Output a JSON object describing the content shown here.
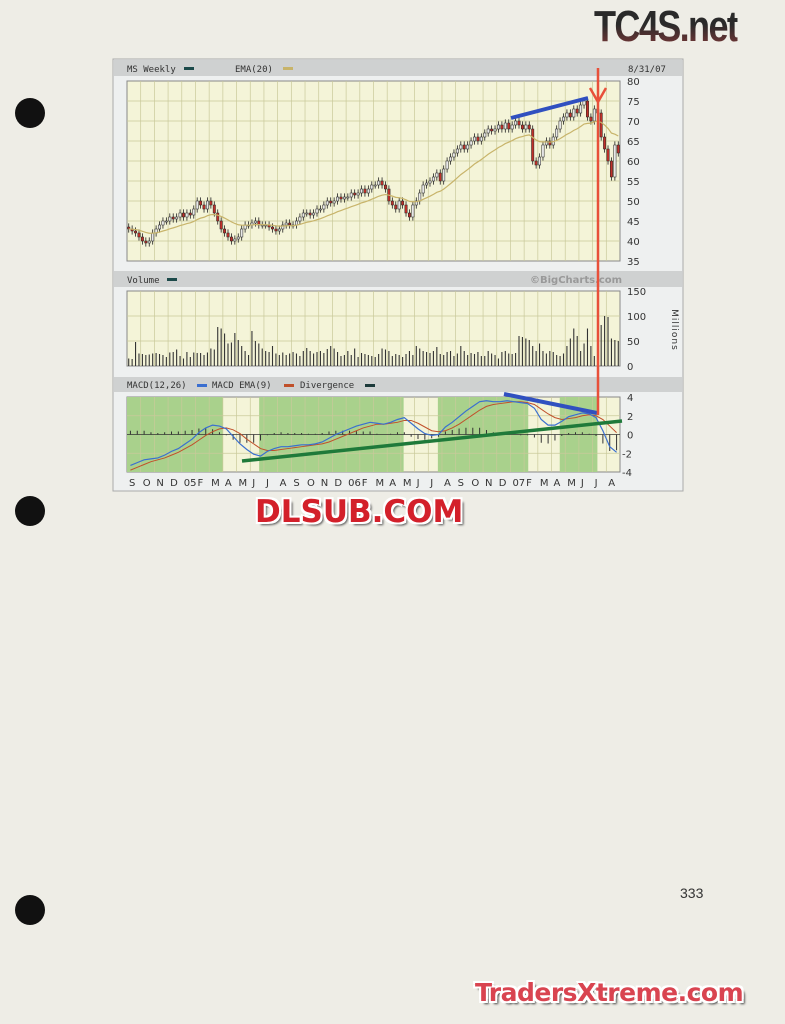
{
  "logos": {
    "top_right": "TC4S.net",
    "middle": "DLSUB.COM",
    "bottom_right": "TradersXtreme.com"
  },
  "page_number": "333",
  "chart_data": {
    "type": "candlestick",
    "price_panel": {
      "series_label": "MS Weekly",
      "ema_label": "EMA(20)",
      "date": "8/31/07",
      "ylim": [
        35,
        80
      ],
      "yticks": [
        "80",
        "75",
        "70",
        "65",
        "60",
        "55",
        "50",
        "45",
        "40",
        "35"
      ],
      "closes": [
        43,
        42.5,
        42,
        41,
        40,
        39.5,
        40,
        42,
        43,
        44,
        45,
        45,
        46,
        45.5,
        46,
        47,
        46,
        47,
        46.5,
        48,
        50,
        49,
        48,
        50,
        49,
        47,
        45,
        43,
        42,
        41,
        40,
        40.5,
        41,
        43,
        44,
        44,
        44.5,
        45,
        44,
        44,
        44,
        43.5,
        43,
        42.5,
        43,
        44,
        44.5,
        44,
        44,
        45,
        46,
        47,
        47,
        46.5,
        47,
        48,
        48,
        49,
        50,
        49.5,
        50,
        51,
        50.5,
        51,
        51,
        52,
        51.5,
        52,
        53,
        52,
        53,
        54,
        54,
        55,
        54,
        53,
        50,
        49,
        48,
        50,
        49,
        47,
        46,
        49,
        50,
        52,
        54,
        54.5,
        55,
        56,
        57,
        55,
        58,
        60,
        61,
        62,
        63,
        64,
        63,
        64,
        65,
        66,
        65,
        66,
        67,
        68,
        67.5,
        68,
        69,
        68,
        69.5,
        68,
        69,
        70,
        69,
        68,
        69,
        68,
        60,
        59,
        61,
        64,
        65,
        64,
        66,
        68,
        70,
        71,
        72,
        71,
        73,
        72,
        74,
        75,
        71,
        70,
        73,
        72,
        66,
        63,
        60,
        56,
        64,
        62
      ],
      "ema_color": "#c8b46a",
      "up_color": "#e8e8e8",
      "down_color": "#c0302a"
    },
    "volume_panel": {
      "label": "Volume",
      "watermark": "©BigCharts.com",
      "unit": "Millions",
      "ylim": [
        0,
        150
      ],
      "yticks": [
        "150",
        "100",
        "50",
        "0"
      ],
      "values": [
        15,
        14,
        48,
        25,
        24,
        22,
        23,
        25,
        26,
        24,
        22,
        18,
        27,
        28,
        33,
        20,
        15,
        28,
        18,
        27,
        26,
        26,
        22,
        27,
        35,
        33,
        78,
        75,
        65,
        45,
        47,
        66,
        52,
        40,
        30,
        22,
        70,
        50,
        45,
        35,
        30,
        28,
        40,
        25,
        22,
        27,
        22,
        25,
        28,
        25,
        20,
        30,
        36,
        30,
        25,
        28,
        30,
        26,
        34,
        40,
        35,
        28,
        20,
        22,
        30,
        22,
        35,
        18,
        26,
        24,
        22,
        20,
        18,
        24,
        35,
        33,
        30,
        20,
        24,
        22,
        18,
        24,
        30,
        22,
        40,
        35,
        30,
        28,
        26,
        30,
        38,
        24,
        22,
        28,
        30,
        20,
        25,
        40,
        30,
        22,
        26,
        24,
        28,
        20,
        20,
        30,
        25,
        22,
        15,
        28,
        30,
        25,
        24,
        26,
        60,
        58,
        55,
        52,
        40,
        30,
        45,
        30,
        25,
        30,
        28,
        22,
        20,
        25,
        40,
        55,
        75,
        60,
        30,
        45,
        75,
        40,
        20,
        80,
        82,
        100,
        98,
        55,
        52,
        50
      ]
    },
    "macd_panel": {
      "label": "MACD(12,26)",
      "signal_label": "MACD EMA(9)",
      "divergence_label": "Divergence",
      "ylim": [
        -4,
        4
      ],
      "yticks": [
        "4",
        "2",
        "0",
        "-2",
        "-4"
      ],
      "macd_color": "#3a6fd0",
      "signal_color": "#c0502a",
      "macd": [
        -3.3,
        -3.0,
        -2.7,
        -2.6,
        -2.5,
        -2.2,
        -1.8,
        -1.5,
        -1.0,
        -0.5,
        0.2,
        0.7,
        1.0,
        0.9,
        0.6,
        -0.2,
        -1.0,
        -1.6,
        -2.1,
        -2.3,
        -1.8,
        -1.5,
        -1.3,
        -1.3,
        -1.2,
        -1.1,
        -1.1,
        -1.0,
        -0.8,
        -0.4,
        0.0,
        0.3,
        0.6,
        0.9,
        1.1,
        1.3,
        1.2,
        1.1,
        1.3,
        1.6,
        1.8,
        1.2,
        0.6,
        0.1,
        -0.1,
        0.0,
        0.8,
        1.3,
        1.9,
        2.5,
        3.0,
        3.5,
        3.6,
        3.5,
        3.5,
        3.6,
        3.5,
        3.4,
        3.3,
        2.8,
        1.6,
        1.0,
        1.0,
        1.4,
        1.9,
        2.1,
        2.3,
        2.2,
        1.8,
        0.4,
        -1.3,
        -1.9
      ],
      "signal": [
        -3.8,
        -3.5,
        -3.2,
        -2.9,
        -2.7,
        -2.5,
        -2.2,
        -1.9,
        -1.5,
        -1.1,
        -0.6,
        -0.1,
        0.3,
        0.6,
        0.7,
        0.5,
        0.1,
        -0.5,
        -1.0,
        -1.5,
        -1.7,
        -1.7,
        -1.6,
        -1.5,
        -1.4,
        -1.3,
        -1.2,
        -1.1,
        -1.0,
        -0.8,
        -0.5,
        -0.2,
        0.1,
        0.4,
        0.7,
        0.9,
        1.1,
        1.1,
        1.2,
        1.3,
        1.5,
        1.5,
        1.2,
        0.8,
        0.4,
        0.3,
        0.4,
        0.7,
        1.1,
        1.6,
        2.1,
        2.6,
        3.0,
        3.2,
        3.3,
        3.4,
        3.5,
        3.5,
        3.4,
        3.2,
        2.7,
        2.2,
        1.8,
        1.6,
        1.7,
        1.8,
        2.0,
        2.1,
        2.0,
        1.6,
        0.9,
        0.2
      ],
      "shaded_color": "#a9d18c",
      "shaded_periods_point_index": [
        [
          0,
          14
        ],
        [
          19.3,
          40.4
        ],
        [
          45.4,
          58.6
        ],
        [
          63.2,
          68.7
        ]
      ]
    },
    "x_tick_labels": [
      "S",
      "O",
      "N",
      "D",
      "05",
      "F",
      "M",
      "A",
      "M",
      "J",
      "J",
      "A",
      "S",
      "O",
      "N",
      "D",
      "06",
      "F",
      "M",
      "A",
      "M",
      "J",
      "J",
      "A",
      "S",
      "O",
      "N",
      "D",
      "07",
      "F",
      "M",
      "A",
      "M",
      "J",
      "J",
      "A"
    ],
    "annotations": {
      "price_trendline_color": "#3050c0",
      "macd_trendline_color": "#3050c0",
      "support_line_color": "#1f7a3a",
      "arrow_color": "#e8503a"
    }
  }
}
